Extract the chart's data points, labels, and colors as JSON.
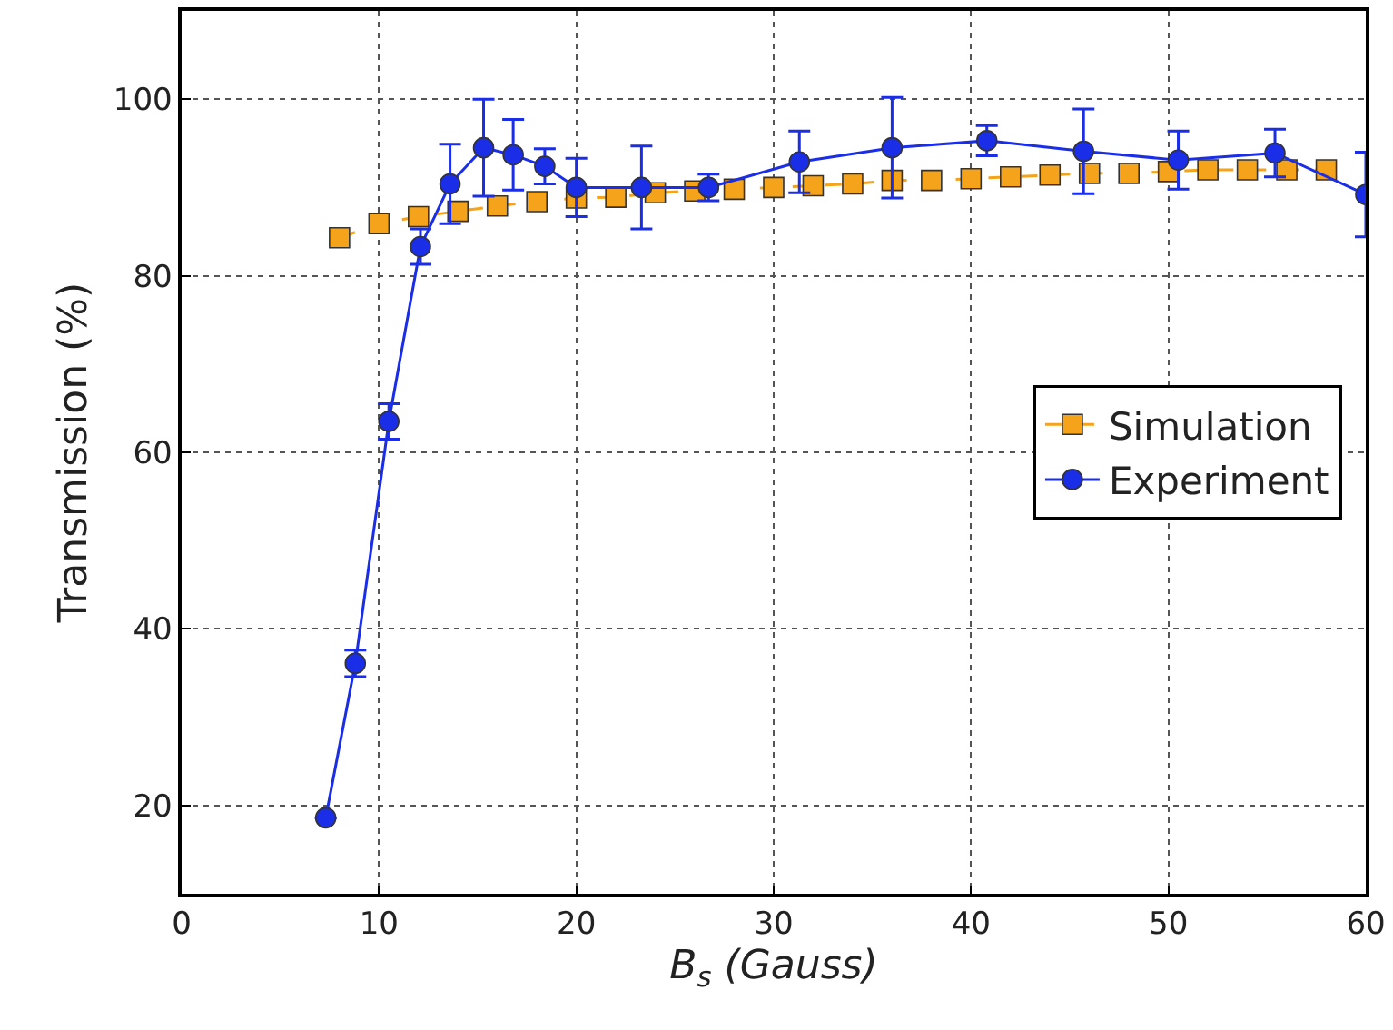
{
  "chart_data": {
    "type": "line",
    "xlabel": "B$_{s}$ (Gauss)",
    "ylabel": "Transmission (%)",
    "xlim": [
      0,
      60
    ],
    "ylim": [
      10,
      110
    ],
    "xticks": [
      0,
      10,
      20,
      30,
      40,
      50,
      60
    ],
    "yticks": [
      20,
      40,
      60,
      80,
      100
    ],
    "grid": true,
    "legend": "right",
    "series": [
      {
        "name": "Simulation",
        "color": "#f5a31a",
        "marker": "square",
        "line_style": "dashed",
        "x": [
          8,
          10,
          12,
          14,
          16,
          18,
          20,
          22,
          24,
          26,
          28,
          30,
          32,
          34,
          36,
          38,
          40,
          42,
          44,
          46,
          48,
          50,
          52,
          54,
          56,
          58
        ],
        "values": [
          84.3,
          85.9,
          86.7,
          87.3,
          87.9,
          88.4,
          88.8,
          88.9,
          89.4,
          89.6,
          89.8,
          90,
          90.2,
          90.4,
          90.8,
          90.8,
          91,
          91.2,
          91.4,
          91.6,
          91.6,
          91.8,
          92,
          92,
          92,
          92
        ]
      },
      {
        "name": "Experiment",
        "color": "#1a2ee8",
        "marker": "circle",
        "line_style": "solid",
        "x": [
          7.3,
          8.8,
          10.5,
          12.1,
          13.6,
          15.3,
          16.8,
          18.4,
          20,
          23.3,
          26.7,
          31.3,
          36,
          40.8,
          45.7,
          50.5,
          55.4,
          60
        ],
        "values": [
          18.6,
          36.1,
          63.5,
          83.3,
          90.4,
          94.5,
          93.7,
          92.4,
          90,
          90,
          90,
          92.9,
          94.5,
          95.3,
          94.1,
          93.1,
          93.9,
          89.2
        ],
        "errors": [
          null,
          1.5,
          2,
          2,
          4.5,
          5.5,
          4,
          2,
          3.3,
          4.7,
          1.5,
          3.5,
          5.7,
          1.7,
          4.8,
          3.3,
          2.7,
          4.8
        ]
      }
    ]
  }
}
